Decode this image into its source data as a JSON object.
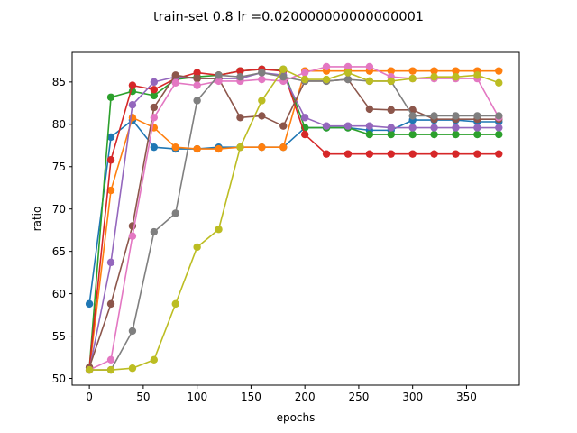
{
  "chart_data": {
    "type": "line",
    "title": "train-set 0.8 lr =0.020000000000000001",
    "xlabel": "epochs",
    "ylabel": "ratio",
    "xlim": [
      -16,
      399
    ],
    "ylim": [
      49.2,
      88.5
    ],
    "xticks": [
      0,
      50,
      100,
      150,
      200,
      250,
      300,
      350
    ],
    "yticks": [
      50,
      55,
      60,
      65,
      70,
      75,
      80,
      85
    ],
    "grid": false,
    "legend": "none",
    "x": [
      0,
      20,
      40,
      60,
      80,
      100,
      120,
      140,
      160,
      180,
      200,
      220,
      240,
      260,
      280,
      300,
      320,
      340,
      360,
      380
    ],
    "series": [
      {
        "color": "#1f77b4",
        "values": [
          58.8,
          78.5,
          80.5,
          77.3,
          77.1,
          77.1,
          77.3,
          77.3,
          77.3,
          77.3,
          79.6,
          79.6,
          79.6,
          79.3,
          79.3,
          80.5,
          80.5,
          80.5,
          80.3,
          80.3
        ]
      },
      {
        "color": "#ff7f0e",
        "values": [
          51.0,
          72.2,
          80.8,
          79.6,
          77.3,
          77.1,
          77.1,
          77.3,
          77.3,
          77.3,
          86.3,
          86.3,
          86.3,
          86.3,
          86.3,
          86.3,
          86.3,
          86.3,
          86.3,
          86.3
        ]
      },
      {
        "color": "#2ca02c",
        "values": [
          51.3,
          83.2,
          83.9,
          83.4,
          85.3,
          85.6,
          85.8,
          86.3,
          86.5,
          86.5,
          79.6,
          79.6,
          79.6,
          78.8,
          78.8,
          78.8,
          78.8,
          78.8,
          78.8,
          78.8
        ]
      },
      {
        "color": "#d62728",
        "values": [
          51.3,
          75.8,
          84.6,
          84.1,
          85.4,
          86.1,
          85.8,
          86.3,
          86.5,
          86.3,
          78.8,
          76.5,
          76.5,
          76.5,
          76.5,
          76.5,
          76.5,
          76.5,
          76.5,
          76.5
        ]
      },
      {
        "color": "#9467bd",
        "values": [
          51.0,
          63.7,
          82.3,
          85.0,
          85.6,
          85.4,
          85.4,
          85.4,
          86.1,
          85.8,
          80.8,
          79.8,
          79.8,
          79.8,
          79.6,
          79.6,
          79.6,
          79.6,
          79.6,
          79.6
        ]
      },
      {
        "color": "#8c564b",
        "values": [
          51.3,
          58.8,
          68.0,
          82.0,
          85.8,
          85.4,
          85.4,
          80.8,
          81.0,
          79.8,
          85.1,
          85.1,
          85.3,
          81.8,
          81.7,
          81.7,
          80.6,
          80.6,
          80.6,
          80.6
        ]
      },
      {
        "color": "#e377c2",
        "values": [
          51.0,
          52.2,
          66.8,
          80.8,
          84.9,
          84.6,
          85.1,
          85.1,
          85.3,
          85.1,
          86.1,
          86.8,
          86.8,
          86.8,
          85.6,
          85.4,
          85.4,
          85.4,
          85.4,
          80.8
        ]
      },
      {
        "color": "#7f7f7f",
        "values": [
          51.0,
          51.0,
          55.6,
          67.3,
          69.5,
          82.8,
          85.8,
          85.6,
          86.1,
          85.6,
          85.1,
          85.1,
          85.3,
          85.1,
          85.1,
          81.0,
          81.0,
          81.0,
          81.0,
          81.0
        ]
      },
      {
        "color": "#bcbd22",
        "values": [
          51.0,
          51.0,
          51.2,
          52.2,
          58.8,
          65.5,
          67.6,
          77.3,
          82.8,
          86.5,
          85.3,
          85.3,
          86.1,
          85.1,
          85.1,
          85.4,
          85.6,
          85.6,
          85.8,
          84.9
        ]
      }
    ]
  }
}
